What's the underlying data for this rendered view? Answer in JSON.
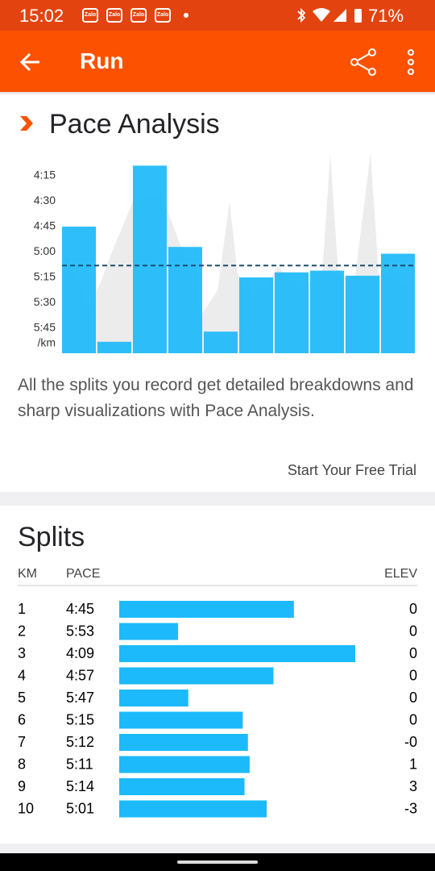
{
  "status_bar": {
    "time": "15:02",
    "notification_icons": [
      "Zalo",
      "Zalo",
      "Zalo",
      "Zalo"
    ],
    "battery": "71%"
  },
  "header": {
    "title": "Run"
  },
  "pace_analysis": {
    "title": "Pace Analysis",
    "yticks": [
      "4:15",
      "4:30",
      "4:45",
      "5:00",
      "5:15",
      "5:30",
      "5:45"
    ],
    "unit": "/km",
    "average_pace_seconds": 308,
    "description": "All the splits you record get detailed breakdowns and sharp visualizations with Pace Analysis.",
    "cta": "Start Your Free Trial"
  },
  "splits": {
    "title": "Splits",
    "columns": [
      "KM",
      "PACE",
      "ELEV"
    ],
    "rows": [
      [
        "1",
        "4:45",
        "0"
      ],
      [
        "2",
        "5:53",
        "0"
      ],
      [
        "3",
        "4:09",
        "0"
      ],
      [
        "4",
        "4:57",
        "0"
      ],
      [
        "5",
        "5:47",
        "0"
      ],
      [
        "6",
        "5:15",
        "0"
      ],
      [
        "7",
        "5:12",
        "-0"
      ],
      [
        "8",
        "5:11",
        "1"
      ],
      [
        "9",
        "5:14",
        "3"
      ],
      [
        "10",
        "5:01",
        "-3"
      ]
    ]
  }
}
